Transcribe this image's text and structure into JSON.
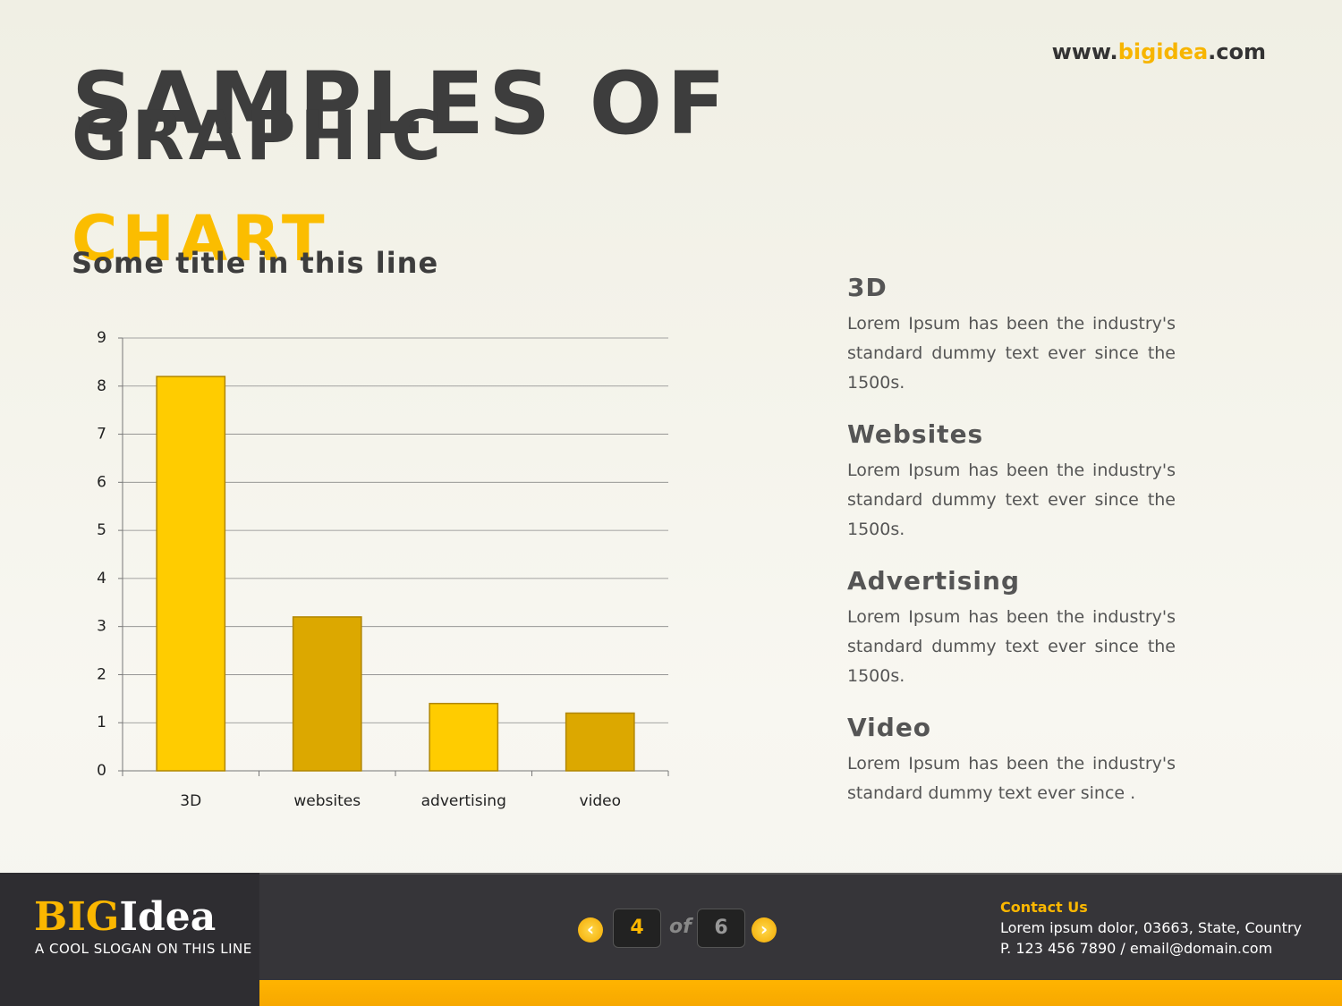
{
  "header": {
    "url_parts": [
      "www.",
      "bigidea",
      ".com"
    ],
    "title_lines": [
      "SAMPLES OF",
      "GRAPHIC"
    ],
    "title_highlight": "CHART"
  },
  "chart_data": {
    "type": "bar",
    "title": "Some title in this line",
    "categories": [
      "3D",
      "websites",
      "advertising",
      "video"
    ],
    "values": [
      8.2,
      3.2,
      1.4,
      1.2
    ],
    "colors": [
      "#ffcc00",
      "#dca800",
      "#ffcc00",
      "#dca800"
    ],
    "ylim": [
      0,
      9
    ],
    "yticks": [
      0,
      1,
      2,
      3,
      4,
      5,
      6,
      7,
      8,
      9
    ],
    "grid": true
  },
  "items": [
    {
      "heading": "3D",
      "text": "Lorem Ipsum has been the industry's standard dummy text ever since the 1500s."
    },
    {
      "heading": "Websites",
      "text": "Lorem Ipsum has been the industry's standard dummy text ever since the 1500s."
    },
    {
      "heading": "Advertising",
      "text": "Lorem Ipsum has been the industry's standard dummy text ever since the 1500s."
    },
    {
      "heading": "Video",
      "text": "Lorem Ipsum has been the industry's standard dummy text ever since ."
    }
  ],
  "footer": {
    "logo": [
      "BIG",
      "Idea"
    ],
    "slogan": "A COOL SLOGAN ON THIS LINE",
    "page_current": 4,
    "page_of": "of",
    "page_total": 6,
    "contact_title": "Contact Us",
    "contact_lines": [
      "Lorem ipsum dolor, 03663, State, Country",
      "P.  123 456 7890 / email@domain.com"
    ]
  }
}
